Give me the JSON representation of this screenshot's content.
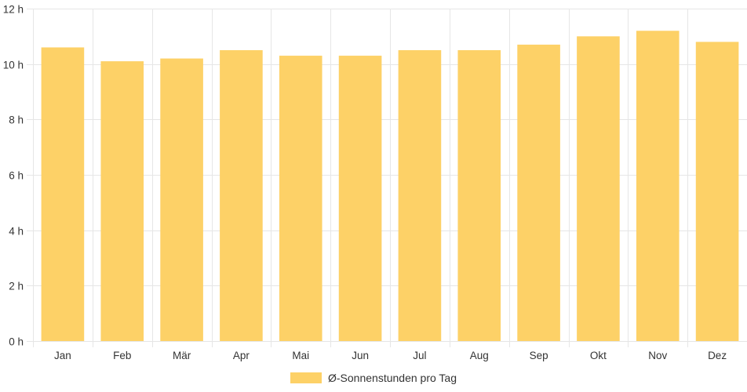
{
  "chart_data": {
    "type": "bar",
    "categories": [
      "Jan",
      "Feb",
      "Mär",
      "Apr",
      "Mai",
      "Jun",
      "Jul",
      "Aug",
      "Sep",
      "Okt",
      "Nov",
      "Dez"
    ],
    "series": [
      {
        "name": "Ø-Sonnenstunden pro Tag",
        "values": [
          10.6,
          10.1,
          10.2,
          10.5,
          10.3,
          10.3,
          10.5,
          10.5,
          10.7,
          11.0,
          11.2,
          10.8
        ],
        "color": "#fdd167"
      }
    ],
    "title": "",
    "xlabel": "",
    "ylabel": "",
    "ylim": [
      0,
      12
    ],
    "yticks": [
      {
        "value": 0,
        "label": "0 h"
      },
      {
        "value": 2,
        "label": "2 h"
      },
      {
        "value": 4,
        "label": "4 h"
      },
      {
        "value": 6,
        "label": "6 h"
      },
      {
        "value": 8,
        "label": "8 h"
      },
      {
        "value": 10,
        "label": "10 h"
      },
      {
        "value": 12,
        "label": "12 h"
      }
    ],
    "grid": true,
    "legend": "bottom",
    "colors": {
      "grid": "#e6e6e6",
      "text": "#333333"
    }
  }
}
